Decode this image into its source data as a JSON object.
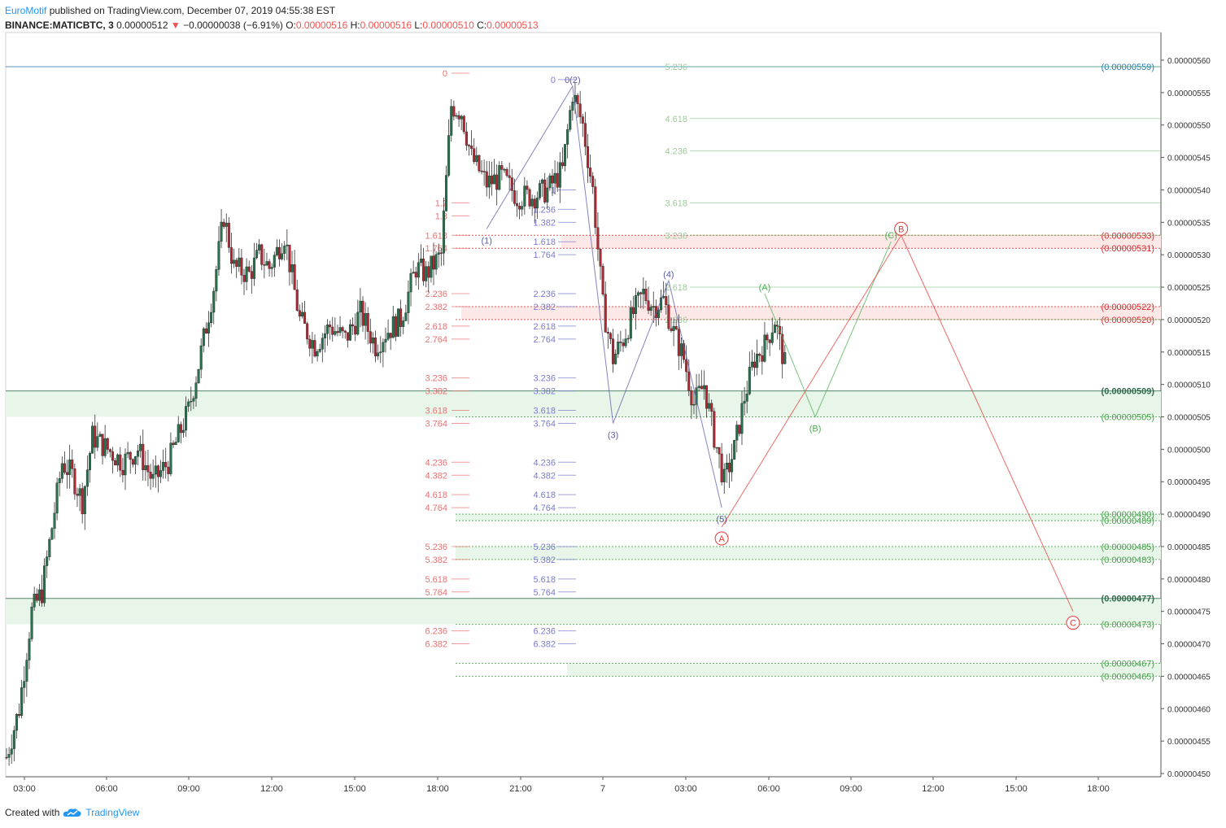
{
  "header": {
    "author": "EuroMotif",
    "published": "published on TradingView.com, December 07, 2019 04:55:38 EST",
    "symbol": "BINANCE:MATICBTC, 3",
    "price": "0.00000512",
    "change": "−0.00000038 (−6.91%)",
    "o_label": "O:",
    "o": "0.00000516",
    "h_label": "H:",
    "h": "0.00000516",
    "l_label": "L:",
    "l": "0.00000510",
    "c_label": "C:",
    "c": "0.00000513"
  },
  "footer": {
    "created": "Created with",
    "brand": "TradingView"
  },
  "colors": {
    "up": "#26734d",
    "down": "#b22833",
    "fib_red": "#e57373",
    "fib_blue": "#7b7bd0",
    "fib_green": "#66bb6a",
    "zone_green": "#e8f5e9",
    "zone_red": "#fde8e8",
    "axis": "#555555"
  },
  "chart_data": {
    "type": "candlestick",
    "ylim": [
      4.5e-06,
      5.6e-06
    ],
    "y_ticks": [
      "0.00000560",
      "0.00000555",
      "0.00000550",
      "0.00000545",
      "0.00000540",
      "0.00000535",
      "0.00000530",
      "0.00000525",
      "0.00000520",
      "0.00000515",
      "0.00000510",
      "0.00000505",
      "0.00000500",
      "0.00000495",
      "0.00000490",
      "0.00000485",
      "0.00000480",
      "0.00000475",
      "0.00000470",
      "0.00000465",
      "0.00000460",
      "0.00000455",
      "0.00000450"
    ],
    "x_ticks": [
      "03:00",
      "06:00",
      "09:00",
      "12:00",
      "15:00",
      "18:00",
      "21:00",
      "7",
      "03:00",
      "06:00",
      "09:00",
      "12:00",
      "15:00",
      "18:00"
    ],
    "price_path": [
      {
        "x": 0,
        "p": 4.525
      },
      {
        "x": 5,
        "p": 4.6
      },
      {
        "x": 10,
        "p": 4.75
      },
      {
        "x": 14,
        "p": 4.78
      },
      {
        "x": 18,
        "p": 4.88
      },
      {
        "x": 22,
        "p": 4.98
      },
      {
        "x": 26,
        "p": 4.96
      },
      {
        "x": 30,
        "p": 4.92
      },
      {
        "x": 34,
        "p": 5.02
      },
      {
        "x": 40,
        "p": 5.0
      },
      {
        "x": 46,
        "p": 4.98
      },
      {
        "x": 52,
        "p": 5.0
      },
      {
        "x": 58,
        "p": 4.95
      },
      {
        "x": 64,
        "p": 4.98
      },
      {
        "x": 72,
        "p": 5.06
      },
      {
        "x": 76,
        "p": 5.13
      },
      {
        "x": 82,
        "p": 5.25
      },
      {
        "x": 86,
        "p": 5.36
      },
      {
        "x": 90,
        "p": 5.28
      },
      {
        "x": 96,
        "p": 5.27
      },
      {
        "x": 100,
        "p": 5.3
      },
      {
        "x": 104,
        "p": 5.28
      },
      {
        "x": 110,
        "p": 5.33
      },
      {
        "x": 116,
        "p": 5.2
      },
      {
        "x": 122,
        "p": 5.16
      },
      {
        "x": 128,
        "p": 5.19
      },
      {
        "x": 134,
        "p": 5.17
      },
      {
        "x": 140,
        "p": 5.21
      },
      {
        "x": 146,
        "p": 5.16
      },
      {
        "x": 150,
        "p": 5.18
      },
      {
        "x": 156,
        "p": 5.2
      },
      {
        "x": 162,
        "p": 5.28
      },
      {
        "x": 166,
        "p": 5.27
      },
      {
        "x": 172,
        "p": 5.3
      },
      {
        "x": 176,
        "p": 5.53
      },
      {
        "x": 180,
        "p": 5.52
      },
      {
        "x": 184,
        "p": 5.45
      },
      {
        "x": 190,
        "p": 5.41
      },
      {
        "x": 196,
        "p": 5.42
      },
      {
        "x": 202,
        "p": 5.39
      },
      {
        "x": 208,
        "p": 5.39
      },
      {
        "x": 214,
        "p": 5.4
      },
      {
        "x": 220,
        "p": 5.43
      },
      {
        "x": 224,
        "p": 5.55
      },
      {
        "x": 228,
        "p": 5.5
      },
      {
        "x": 232,
        "p": 5.4
      },
      {
        "x": 236,
        "p": 5.22
      },
      {
        "x": 240,
        "p": 5.14
      },
      {
        "x": 244,
        "p": 5.17
      },
      {
        "x": 248,
        "p": 5.21
      },
      {
        "x": 252,
        "p": 5.24
      },
      {
        "x": 256,
        "p": 5.22
      },
      {
        "x": 260,
        "p": 5.23
      },
      {
        "x": 264,
        "p": 5.18
      },
      {
        "x": 268,
        "p": 5.14
      },
      {
        "x": 272,
        "p": 5.07
      },
      {
        "x": 276,
        "p": 5.1
      },
      {
        "x": 280,
        "p": 5.02
      },
      {
        "x": 284,
        "p": 4.95
      },
      {
        "x": 288,
        "p": 5.0
      },
      {
        "x": 292,
        "p": 5.08
      },
      {
        "x": 296,
        "p": 5.14
      },
      {
        "x": 300,
        "p": 5.16
      },
      {
        "x": 304,
        "p": 5.2
      },
      {
        "x": 308,
        "p": 5.13
      }
    ],
    "horizontal_levels": [
      {
        "label": "(0.00000559)",
        "value": 5.59,
        "color": "#2a7ab8"
      },
      {
        "label": "(0.00000533)",
        "value": 5.33,
        "color": "#d32f2f"
      },
      {
        "label": "(0.00000531)",
        "value": 5.31,
        "color": "#d32f2f"
      },
      {
        "label": "(0.00000522)",
        "value": 5.22,
        "color": "#d32f2f"
      },
      {
        "label": "(0.00000520)",
        "value": 5.2,
        "color": "#d32f2f"
      },
      {
        "label": "(0.00000509)",
        "value": 5.09,
        "color": "#2e6b4a"
      },
      {
        "label": "(0.00000505)",
        "value": 5.05,
        "color": "#43a047"
      },
      {
        "label": "(0.00000490)",
        "value": 4.9,
        "color": "#43a047"
      },
      {
        "label": "(0.00000489)",
        "value": 4.89,
        "color": "#43a047"
      },
      {
        "label": "(0.00000485)",
        "value": 4.85,
        "color": "#43a047"
      },
      {
        "label": "(0.00000483)",
        "value": 4.83,
        "color": "#43a047"
      },
      {
        "label": "(0.00000477)",
        "value": 4.77,
        "color": "#2e6b4a"
      },
      {
        "label": "(0.00000473)",
        "value": 4.73,
        "color": "#43a047"
      },
      {
        "label": "(0.00000467)",
        "value": 4.67,
        "color": "#43a047"
      },
      {
        "label": "(0.00000465)",
        "value": 4.65,
        "color": "#43a047"
      }
    ],
    "fib_red": [
      {
        "t": "0",
        "p": 5.58
      },
      {
        "t": "1.2",
        "p": 5.38
      },
      {
        "t": "1.3",
        "p": 5.36
      },
      {
        "t": "1.618",
        "p": 5.33
      },
      {
        "t": "1.764",
        "p": 5.31
      },
      {
        "t": "2.236",
        "p": 5.24
      },
      {
        "t": "2.382",
        "p": 5.22
      },
      {
        "t": "2.618",
        "p": 5.19
      },
      {
        "t": "2.764",
        "p": 5.17
      },
      {
        "t": "3.236",
        "p": 5.11
      },
      {
        "t": "3.382",
        "p": 5.09
      },
      {
        "t": "3.618",
        "p": 5.06
      },
      {
        "t": "3.764",
        "p": 5.04
      },
      {
        "t": "4.236",
        "p": 4.98
      },
      {
        "t": "4.382",
        "p": 4.96
      },
      {
        "t": "4.618",
        "p": 4.93
      },
      {
        "t": "4.764",
        "p": 4.91
      },
      {
        "t": "5.236",
        "p": 4.85
      },
      {
        "t": "5.382",
        "p": 4.83
      },
      {
        "t": "5.618",
        "p": 4.8
      },
      {
        "t": "5.764",
        "p": 4.78
      },
      {
        "t": "6.236",
        "p": 4.72
      },
      {
        "t": "6.382",
        "p": 4.7
      }
    ],
    "fib_blue": [
      {
        "t": "0",
        "p": 5.57
      },
      {
        "t": "1",
        "p": 5.4
      },
      {
        "t": "1.236",
        "p": 5.37
      },
      {
        "t": "1.382",
        "p": 5.35
      },
      {
        "t": "1.618",
        "p": 5.32
      },
      {
        "t": "1.764",
        "p": 5.3
      },
      {
        "t": "2.236",
        "p": 5.24
      },
      {
        "t": "2.382",
        "p": 5.22
      },
      {
        "t": "2.618",
        "p": 5.19
      },
      {
        "t": "2.764",
        "p": 5.17
      },
      {
        "t": "3.236",
        "p": 5.11
      },
      {
        "t": "3.382",
        "p": 5.09
      },
      {
        "t": "3.618",
        "p": 5.06
      },
      {
        "t": "3.764",
        "p": 5.04
      },
      {
        "t": "4.236",
        "p": 4.98
      },
      {
        "t": "4.382",
        "p": 4.96
      },
      {
        "t": "4.618",
        "p": 4.93
      },
      {
        "t": "4.764",
        "p": 4.91
      },
      {
        "t": "5.236",
        "p": 4.85
      },
      {
        "t": "5.382",
        "p": 4.83
      },
      {
        "t": "5.618",
        "p": 4.8
      },
      {
        "t": "5.764",
        "p": 4.78
      },
      {
        "t": "6.236",
        "p": 4.72
      },
      {
        "t": "6.382",
        "p": 4.7
      }
    ],
    "fib_green": [
      {
        "t": "5.236",
        "p": 5.59
      },
      {
        "t": "4.618",
        "p": 5.51
      },
      {
        "t": "4.236",
        "p": 5.46
      },
      {
        "t": "3.618",
        "p": 5.38
      },
      {
        "t": "3.236",
        "p": 5.33
      },
      {
        "t": "2.618",
        "p": 5.25
      },
      {
        "t": "2.236",
        "p": 5.2
      }
    ],
    "wave_blue": [
      {
        "label": "(1)",
        "x": 190,
        "p": 5.34
      },
      {
        "label": "0(2)",
        "x": 224,
        "p": 5.56
      },
      {
        "label": "(3)",
        "x": 240,
        "p": 5.04
      },
      {
        "label": "(4)",
        "x": 262,
        "p": 5.26
      },
      {
        "label": "(5)",
        "x": 283,
        "p": 4.91
      }
    ],
    "wave_red": [
      {
        "label": "A",
        "x": 283,
        "p": 4.88
      },
      {
        "label": "B",
        "x": 354,
        "p": 5.33
      },
      {
        "label": "C",
        "x": 422,
        "p": 4.75
      }
    ],
    "wave_green": [
      {
        "label": "(A)",
        "x": 300,
        "p": 5.24
      },
      {
        "label": "(B)",
        "x": 320,
        "p": 5.05
      },
      {
        "label": "(C)",
        "x": 350,
        "p": 5.32
      }
    ]
  }
}
